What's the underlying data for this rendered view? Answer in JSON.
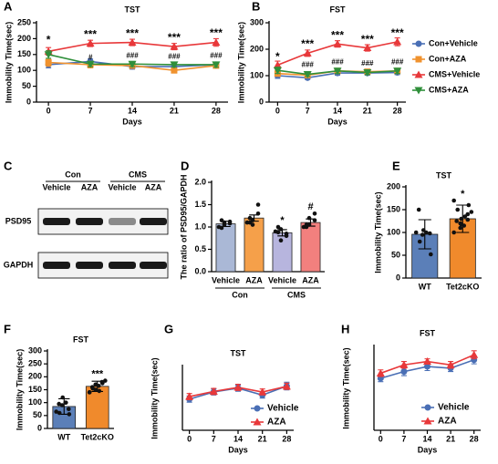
{
  "chart_data": [
    {
      "label": "A",
      "type": "line",
      "title": "TST",
      "x_label": "Days",
      "y_label": "Immobility Time(sec)",
      "x": [
        0,
        7,
        14,
        21,
        28
      ],
      "xlim": [
        -2,
        30
      ],
      "xticks": [
        0,
        7,
        14,
        21,
        28
      ],
      "ylim": [
        0,
        250
      ],
      "yticks": [
        0,
        50,
        100,
        150,
        200,
        250
      ],
      "series": [
        {
          "color": "#4a6fb5",
          "marker": "circle",
          "values": [
            118,
            128,
            112,
            112,
            118
          ],
          "errors": [
            10,
            8,
            8,
            7,
            8
          ]
        },
        {
          "color": "#f0922e",
          "marker": "square",
          "values": [
            125,
            118,
            115,
            100,
            115
          ],
          "errors": [
            12,
            10,
            8,
            8,
            8
          ]
        },
        {
          "color": "#e8383a",
          "marker": "triangle",
          "values": [
            160,
            185,
            188,
            175,
            188
          ],
          "errors": [
            12,
            10,
            10,
            10,
            12
          ]
        },
        {
          "color": "#2f8f3a",
          "marker": "triangle-down",
          "values": [
            150,
            120,
            120,
            118,
            118
          ],
          "errors": [
            12,
            8,
            8,
            8,
            8
          ]
        }
      ],
      "annotations": [
        {
          "x": 0,
          "y": 195,
          "text": "*"
        },
        {
          "x": 7,
          "y": 212,
          "text": "***"
        },
        {
          "x": 14,
          "y": 215,
          "text": "***"
        },
        {
          "x": 21,
          "y": 202,
          "text": "***"
        },
        {
          "x": 28,
          "y": 216,
          "text": "***"
        },
        {
          "x": 7,
          "y": 140,
          "text": "#"
        },
        {
          "x": 14,
          "y": 145,
          "text": "###"
        },
        {
          "x": 21,
          "y": 143,
          "text": "###"
        },
        {
          "x": 28,
          "y": 145,
          "text": "###"
        }
      ]
    },
    {
      "label": "B",
      "type": "line",
      "title": "FST",
      "x_label": "Days",
      "y_label": "Immobility Time(sec)",
      "x": [
        0,
        7,
        14,
        21,
        28
      ],
      "xlim": [
        -2,
        30
      ],
      "xticks": [
        0,
        7,
        14,
        21,
        28
      ],
      "ylim": [
        0,
        300
      ],
      "yticks": [
        0,
        100,
        200,
        300
      ],
      "series": [
        {
          "name": "Con+Vehicle",
          "color": "#4a6fb5",
          "marker": "circle",
          "values": [
            100,
            92,
            110,
            110,
            112
          ],
          "errors": [
            10,
            6,
            8,
            8,
            8
          ]
        },
        {
          "name": "Con+AZA",
          "color": "#f0922e",
          "marker": "square",
          "values": [
            108,
            102,
            118,
            115,
            118
          ],
          "errors": [
            10,
            8,
            8,
            8,
            8
          ]
        },
        {
          "name": "CMS+Vehicle",
          "color": "#e8383a",
          "marker": "triangle",
          "values": [
            140,
            185,
            220,
            205,
            228
          ],
          "errors": [
            15,
            12,
            12,
            12,
            15
          ]
        },
        {
          "name": "CMS+AZA",
          "color": "#2f8f3a",
          "marker": "triangle-down",
          "values": [
            120,
            105,
            118,
            112,
            118
          ],
          "errors": [
            12,
            8,
            10,
            8,
            10
          ]
        }
      ],
      "legend": "right",
      "annotations": [
        {
          "x": 0,
          "y": 170,
          "text": "*"
        },
        {
          "x": 7,
          "y": 218,
          "text": "***"
        },
        {
          "x": 14,
          "y": 250,
          "text": "***"
        },
        {
          "x": 21,
          "y": 235,
          "text": "***"
        },
        {
          "x": 28,
          "y": 260,
          "text": "***"
        },
        {
          "x": 7,
          "y": 140,
          "text": "###"
        },
        {
          "x": 14,
          "y": 150,
          "text": "###"
        },
        {
          "x": 21,
          "y": 145,
          "text": "###"
        },
        {
          "x": 28,
          "y": 150,
          "text": "###"
        }
      ]
    },
    {
      "label": "C",
      "type": "blot",
      "groups": [
        "Con",
        "CMS"
      ],
      "lanes": [
        "Vehicle",
        "AZA",
        "Vehicle",
        "AZA"
      ],
      "rows": [
        "PSD95",
        "GAPDH"
      ]
    },
    {
      "label": "D",
      "type": "bar",
      "y_label": "The ratio of PSD95/GAPDH",
      "categories": [
        "Vehicle",
        "AZA",
        "Vehicle",
        "AZA"
      ],
      "groups": [
        "Con",
        "CMS"
      ],
      "values": [
        1.07,
        1.2,
        0.87,
        1.1
      ],
      "errors": [
        0.06,
        0.07,
        0.07,
        0.08
      ],
      "colors": [
        "#aab8d6",
        "#f5a04a",
        "#b7b5de",
        "#f2807e"
      ],
      "points": [
        [
          1.0,
          1.05,
          1.1,
          1.08,
          1.12,
          0.98,
          1.15
        ],
        [
          1.1,
          1.05,
          1.15,
          1.3,
          1.5,
          1.2,
          1.1
        ],
        [
          0.9,
          0.7,
          0.95,
          0.85,
          0.8,
          1.0,
          0.88
        ],
        [
          1.0,
          1.05,
          1.2,
          1.3,
          1.15,
          1.0,
          1.05
        ]
      ],
      "value_annotations": [
        null,
        null,
        "*",
        "#"
      ],
      "ylim": [
        0,
        2
      ],
      "yticks": [
        {
          "value": 0,
          "label": "0.0"
        },
        {
          "value": 0.5,
          "label": "0.5"
        },
        {
          "value": 1,
          "label": "1.0"
        },
        {
          "value": 1.5,
          "label": "1.5"
        },
        {
          "value": 2,
          "label": "2.0"
        }
      ]
    },
    {
      "label": "E",
      "type": "bar",
      "title": "TST",
      "y_label": "Immobility Time(sec)",
      "categories": [
        "WT",
        "Tet2cKO"
      ],
      "values": [
        96,
        130
      ],
      "errors": [
        32,
        30
      ],
      "colors": [
        "#5b7fb8",
        "#f08a2c"
      ],
      "points": [
        [
          100,
          95,
          105,
          98,
          52,
          150,
          80,
          100
        ],
        [
          100,
          120,
          130,
          140,
          160,
          125,
          150,
          115,
          135,
          145,
          170,
          110,
          118,
          128
        ]
      ],
      "value_annotations": [
        null,
        "*"
      ],
      "ylim": [
        0,
        200
      ],
      "yticks": [
        0,
        50,
        100,
        150,
        200
      ]
    },
    {
      "label": "F",
      "type": "bar",
      "title": "FST",
      "y_label": "Immobility Time(sec)",
      "categories": [
        "WT",
        "Tet2cKO"
      ],
      "values": [
        85,
        163
      ],
      "errors": [
        30,
        20
      ],
      "colors": [
        "#5b7fb8",
        "#f08a2c"
      ],
      "points": [
        [
          65,
          90,
          120,
          75,
          55,
          95,
          60,
          100,
          100
        ],
        [
          140,
          150,
          170,
          180,
          175,
          160,
          155,
          165,
          145,
          185,
          140,
          170
        ]
      ],
      "value_annotations": [
        null,
        "***"
      ],
      "ylim": [
        0,
        300
      ],
      "yticks": [
        0,
        50,
        100,
        150,
        200,
        250,
        300
      ]
    },
    {
      "label": "G",
      "type": "line",
      "title": "TST",
      "x_label": "Days",
      "y_label": "Immobility Time(sec)",
      "x": [
        0,
        7,
        14,
        21,
        28
      ],
      "xlim": [
        -2,
        30
      ],
      "xticks": [
        0,
        7,
        14,
        21,
        28
      ],
      "ylim": [
        0,
        250
      ],
      "series": [
        {
          "name": "Vehicle",
          "color": "#4a6fb5",
          "marker": "circle",
          "values": [
            122,
            150,
            165,
            138,
            173
          ],
          "errors": [
            12,
            12,
            12,
            12,
            15
          ]
        },
        {
          "name": "AZA",
          "color": "#e8383a",
          "marker": "triangle",
          "values": [
            132,
            152,
            168,
            150,
            172
          ],
          "errors": [
            12,
            12,
            12,
            12,
            12
          ]
        }
      ],
      "legend": "lower right"
    },
    {
      "label": "H",
      "type": "line",
      "title": "FST",
      "x_label": "Days",
      "y_label": "Immobility Time(sec)",
      "x": [
        0,
        7,
        14,
        21,
        28
      ],
      "xlim": [
        -2,
        30
      ],
      "xticks": [
        0,
        7,
        14,
        21,
        28
      ],
      "ylim": [
        0,
        250
      ],
      "series": [
        {
          "name": "Vehicle",
          "color": "#4a6fb5",
          "marker": "circle",
          "values": [
            155,
            175,
            190,
            185,
            210
          ],
          "errors": [
            10,
            12,
            12,
            10,
            12
          ]
        },
        {
          "name": "AZA",
          "color": "#e8383a",
          "marker": "triangle",
          "values": [
            170,
            195,
            205,
            195,
            225
          ],
          "errors": [
            10,
            10,
            8,
            10,
            12
          ]
        }
      ],
      "legend": "lower right"
    }
  ]
}
